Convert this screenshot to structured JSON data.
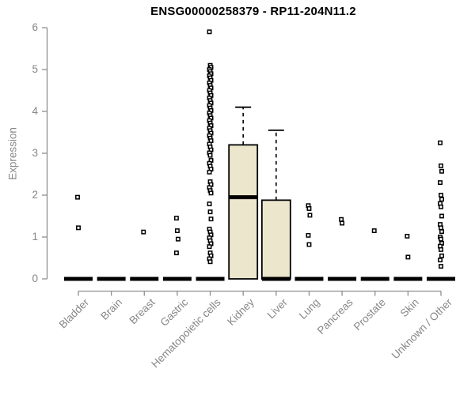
{
  "chart_data": {
    "type": "boxplot",
    "title": "ENSG00000258379 - RP11-204N11.2",
    "ylabel": "Expression",
    "xlabel": "",
    "ylim": [
      0,
      6
    ],
    "yticks": [
      0,
      1,
      2,
      3,
      4,
      5,
      6
    ],
    "grid": false,
    "legend": false,
    "categories": [
      "Bladder",
      "Brain",
      "Breast",
      "Gastric",
      "Hematopoietic cells",
      "Kidney",
      "Liver",
      "Lung",
      "Pancreas",
      "Prostate",
      "Skin",
      "Unknown / Other"
    ],
    "series": [
      {
        "category": "Bladder",
        "q1": 0,
        "median": 0,
        "q3": 0,
        "whisker_low": 0,
        "whisker_high": 0,
        "outliers": [
          1.95,
          1.22
        ]
      },
      {
        "category": "Brain",
        "q1": 0,
        "median": 0,
        "q3": 0,
        "whisker_low": 0,
        "whisker_high": 0,
        "outliers": []
      },
      {
        "category": "Breast",
        "q1": 0,
        "median": 0,
        "q3": 0,
        "whisker_low": 0,
        "whisker_high": 0,
        "outliers": [
          1.12
        ]
      },
      {
        "category": "Gastric",
        "q1": 0,
        "median": 0,
        "q3": 0,
        "whisker_low": 0,
        "whisker_high": 0,
        "outliers": [
          1.45,
          1.15,
          0.95,
          0.62
        ]
      },
      {
        "category": "Hematopoietic cells",
        "q1": 0,
        "median": 0,
        "q3": 0,
        "whisker_low": 0,
        "whisker_high": 0,
        "outliers": [
          5.9,
          5.1,
          5.05,
          5.0,
          4.95,
          4.9,
          4.85,
          4.8,
          4.74,
          4.68,
          4.62,
          4.56,
          4.5,
          4.44,
          4.38,
          4.32,
          4.26,
          4.2,
          4.14,
          4.08,
          4.02,
          3.96,
          3.9,
          3.84,
          3.78,
          3.72,
          3.66,
          3.6,
          3.54,
          3.48,
          3.42,
          3.36,
          3.3,
          3.22,
          3.15,
          3.08,
          3.01,
          2.95,
          2.83,
          2.76,
          2.69,
          2.62,
          2.55,
          2.32,
          2.25,
          2.18,
          2.11,
          2.05,
          1.79,
          1.6,
          1.43,
          1.19,
          1.12,
          1.05,
          0.98,
          0.91,
          0.84,
          0.77,
          0.62,
          0.55,
          0.48,
          0.41
        ]
      },
      {
        "category": "Kidney",
        "q1": 0,
        "median": 1.95,
        "q3": 3.2,
        "whisker_low": 0,
        "whisker_high": 4.1,
        "outliers": []
      },
      {
        "category": "Liver",
        "q1": 0,
        "median": 0,
        "q3": 1.88,
        "whisker_low": 0,
        "whisker_high": 3.55,
        "outliers": []
      },
      {
        "category": "Lung",
        "q1": 0,
        "median": 0,
        "q3": 0,
        "whisker_low": 0,
        "whisker_high": 0,
        "outliers": [
          1.75,
          1.68,
          1.52,
          1.04,
          0.82
        ]
      },
      {
        "category": "Pancreas",
        "q1": 0,
        "median": 0,
        "q3": 0,
        "whisker_low": 0,
        "whisker_high": 0,
        "outliers": [
          1.42,
          1.33
        ]
      },
      {
        "category": "Prostate",
        "q1": 0,
        "median": 0,
        "q3": 0,
        "whisker_low": 0,
        "whisker_high": 0,
        "outliers": [
          1.15
        ]
      },
      {
        "category": "Skin",
        "q1": 0,
        "median": 0,
        "q3": 0,
        "whisker_low": 0,
        "whisker_high": 0,
        "outliers": [
          1.02,
          0.52
        ]
      },
      {
        "category": "Unknown / Other",
        "q1": 0,
        "median": 0,
        "q3": 0,
        "whisker_low": 0,
        "whisker_high": 0,
        "outliers": [
          3.25,
          2.7,
          2.57,
          2.3,
          2.0,
          1.9,
          1.8,
          1.72,
          1.5,
          1.3,
          1.22,
          1.13,
          1.0,
          0.95,
          0.85,
          0.78,
          0.7,
          0.55,
          0.45,
          0.3
        ]
      }
    ],
    "colors": {
      "box_fill": "#ece6cd",
      "box_border": "#000000",
      "median": "#000000",
      "outlier_stroke": "#000000",
      "axis": "#8f8f8f",
      "tick_label": "#878787",
      "title": "#000000",
      "background": "#ffffff"
    }
  }
}
